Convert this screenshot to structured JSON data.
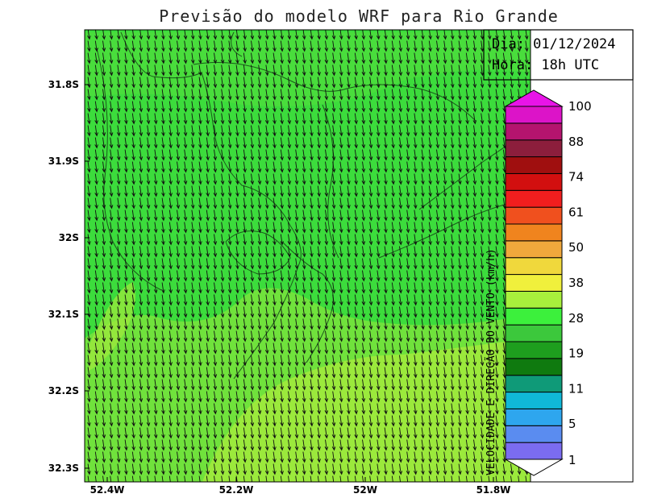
{
  "title": "Previsão do modelo WRF para Rio Grande",
  "info": {
    "date_label": "Dia: 01/12/2024",
    "time_label": "Hora: 18h UTC"
  },
  "colorbar": {
    "title": "VELOCIDADE E DIREÇÃO DO VENTO (km/h)",
    "labels": [
      "1",
      "5",
      "11",
      "19",
      "28",
      "38",
      "50",
      "61",
      "74",
      "88",
      "100"
    ],
    "colors": [
      "#7b6cf0",
      "#5a8cf0",
      "#2ea6ee",
      "#10b8d8",
      "#0f9a78",
      "#0f7a0f",
      "#1e9e1e",
      "#3cc83c",
      "#3cf03c",
      "#a8f03c",
      "#f0f03c",
      "#f0d83c",
      "#f0a83c",
      "#f0841e",
      "#f0501e",
      "#f01e1e",
      "#d20f0f",
      "#a00f0f",
      "#8c1e3c",
      "#b4146e",
      "#dc14c8"
    ],
    "max_color": "#e814e8"
  },
  "axes": {
    "x_ticks": [
      "52.4W",
      "52.2W",
      "52W",
      "51.8W"
    ],
    "y_ticks": [
      "31.8S",
      "31.9S",
      "32S",
      "32.1S",
      "32.2S",
      "32.3S"
    ]
  },
  "colors": {
    "field_green": "#3cdc3c",
    "field_lime": "#98e83c",
    "arrow": "#111111"
  }
}
